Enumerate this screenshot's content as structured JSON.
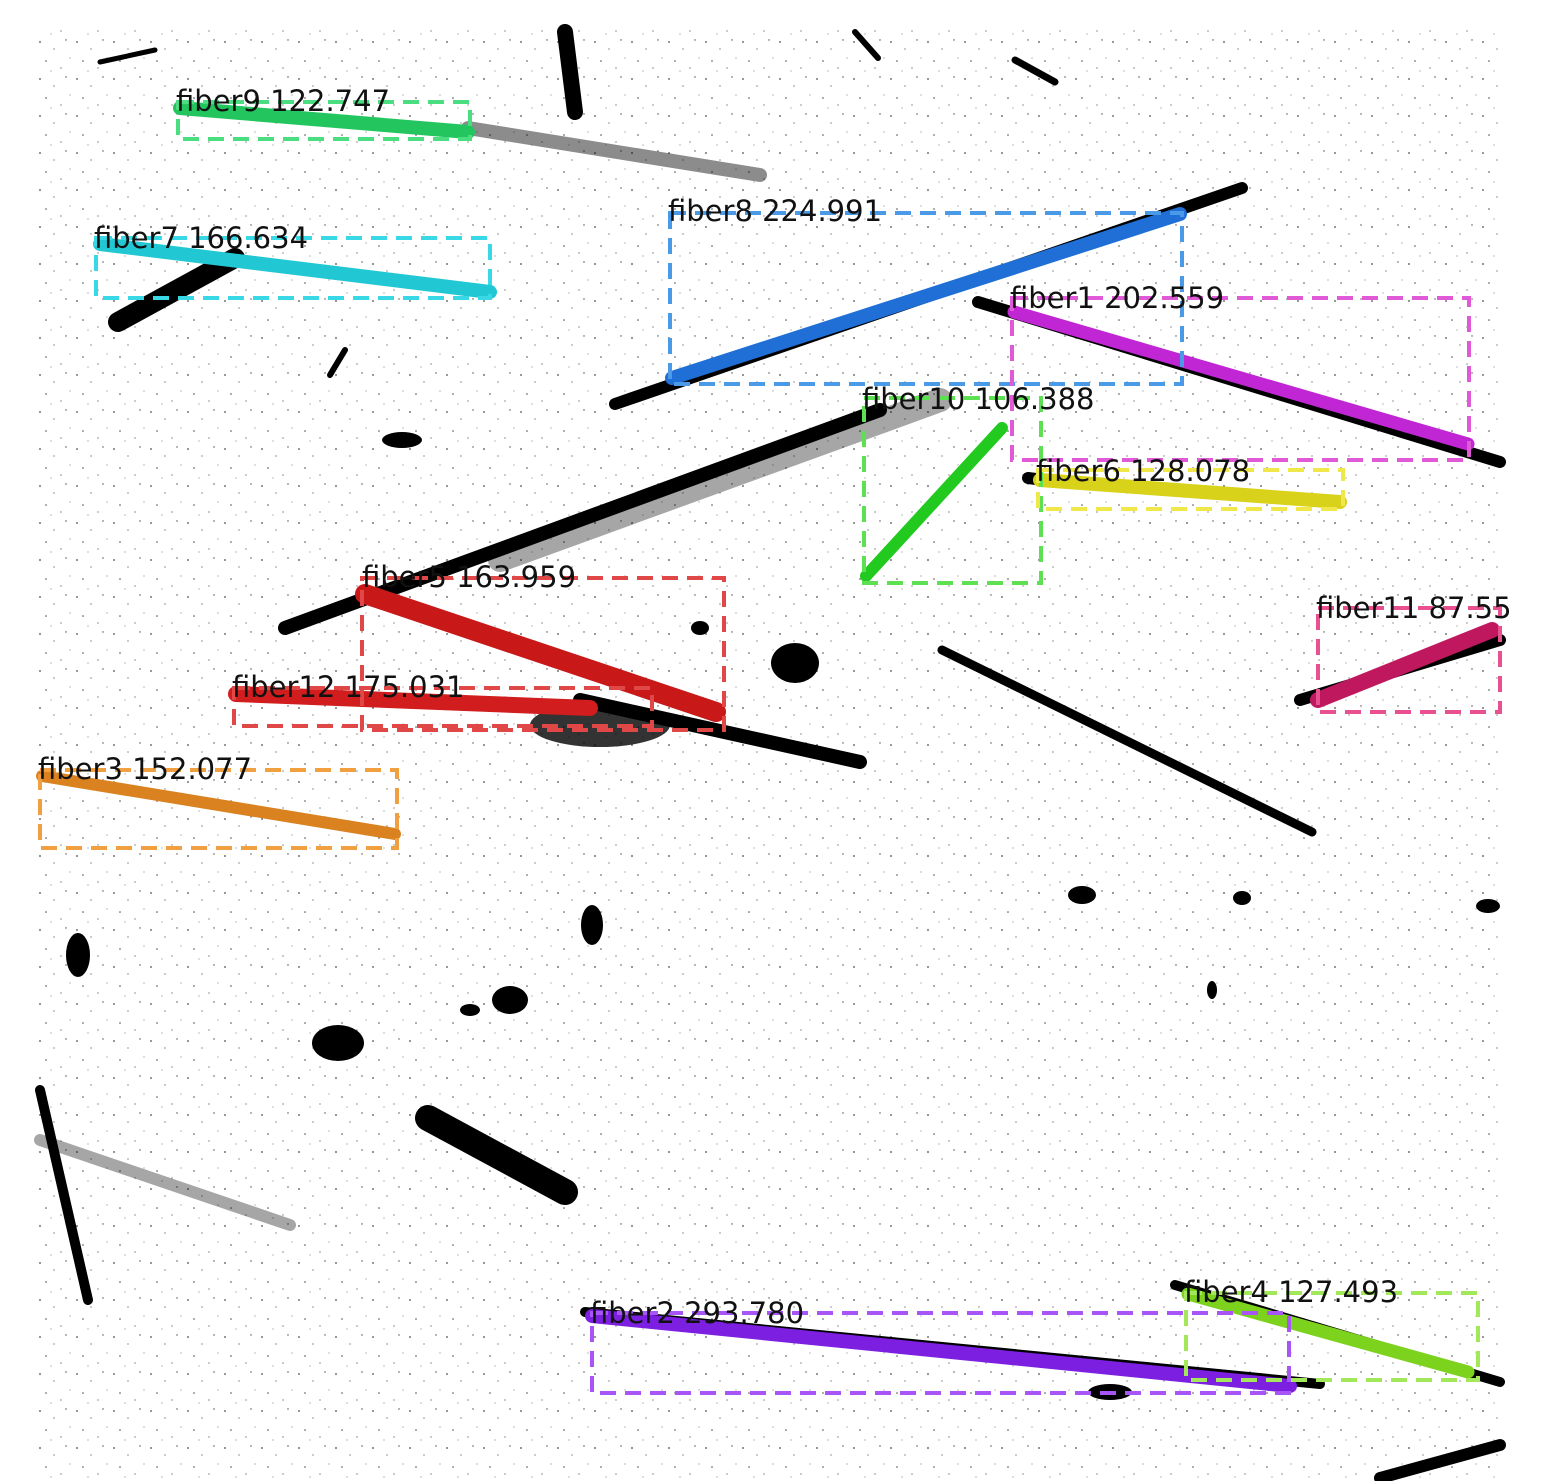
{
  "detections": [
    {
      "label": "fiber9 122.747",
      "color": "#22c55e"
    },
    {
      "label": "fiber7 166.634",
      "color": "#22c7d4"
    },
    {
      "label": "fiber8 224.991",
      "color": "#1f6fd6"
    },
    {
      "label": "fiber1 202.559",
      "color": "#c026d3"
    },
    {
      "label": "fiber10 106.388",
      "color": "#22c91e"
    },
    {
      "label": "fiber6 128.078",
      "color": "#d9d21a"
    },
    {
      "label": "fiber5 163.959",
      "color": "#c81818"
    },
    {
      "label": "fiber11 87.55",
      "color": "#c0185f"
    },
    {
      "label": "fiber12 175.031",
      "color": "#d11d1d"
    },
    {
      "label": "fiber3 152.077",
      "color": "#d9821f"
    },
    {
      "label": "fiber2 293.780",
      "color": "#7c1fe0"
    },
    {
      "label": "fiber4 127.493",
      "color": "#7dd21e"
    }
  ]
}
